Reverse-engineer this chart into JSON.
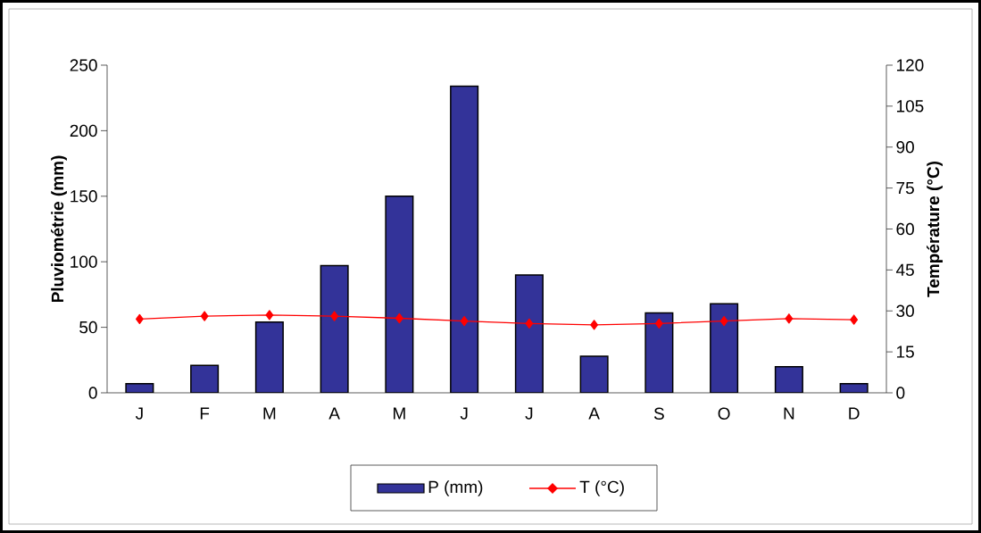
{
  "chart_data": {
    "type": "bar",
    "categories": [
      "J",
      "F",
      "M",
      "A",
      "M",
      "J",
      "J",
      "A",
      "S",
      "O",
      "N",
      "D"
    ],
    "series": [
      {
        "name": "P (mm)",
        "color": "#333399",
        "values": [
          7,
          21,
          54,
          97,
          150,
          234,
          90,
          28,
          61,
          68,
          20,
          7
        ]
      },
      {
        "name": "T (°C)",
        "type": "line",
        "axis": "y2",
        "color": "#ff0000",
        "values": [
          27.0,
          28.1,
          28.5,
          28.1,
          27.3,
          26.3,
          25.4,
          24.9,
          25.4,
          26.3,
          27.2,
          26.8
        ]
      }
    ],
    "ylabel": "Pluviométrie (mm)",
    "y2label": "Température (°C)",
    "ylim": [
      0,
      250
    ],
    "yticks": [
      0,
      50,
      100,
      150,
      200,
      250
    ],
    "y2lim": [
      0,
      120
    ],
    "y2ticks": [
      0,
      15,
      30,
      45,
      60,
      75,
      90,
      105,
      120
    ],
    "marker": "diamond",
    "legend": "bottom"
  }
}
